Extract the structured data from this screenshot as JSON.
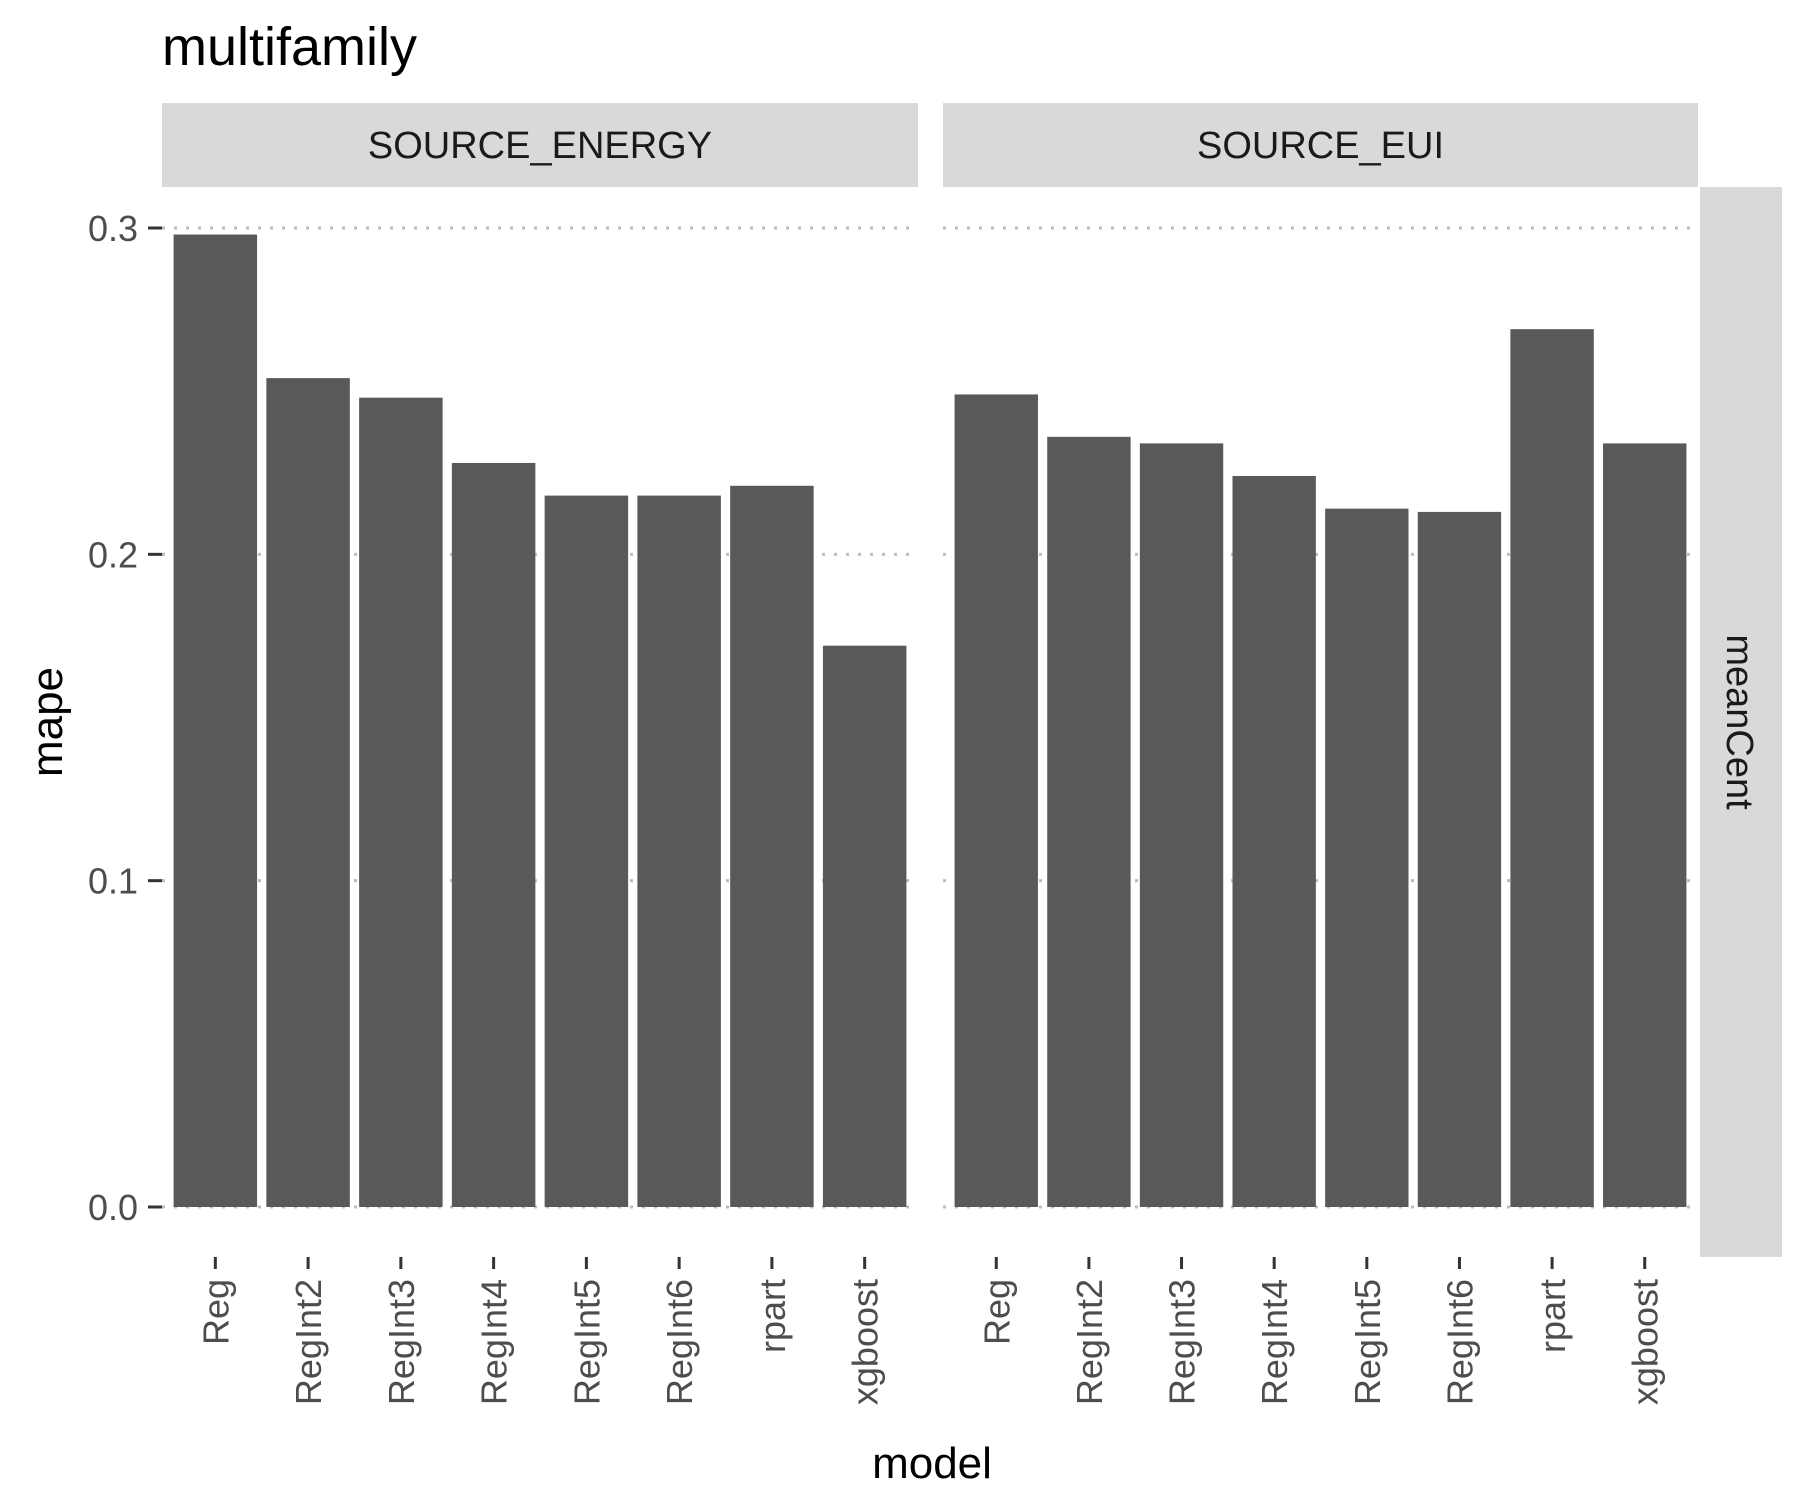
{
  "chart_data": {
    "type": "bar",
    "title": "multifamily",
    "xlabel": "model",
    "ylabel": "mape",
    "ylim": [
      0,
      0.3
    ],
    "yticks": [
      "0.0",
      "0.1",
      "0.2",
      "0.3"
    ],
    "grid": "dotted horizontal",
    "row_strip": "meanCent",
    "categories": [
      "Reg",
      "RegInt2",
      "RegInt3",
      "RegInt4",
      "RegInt5",
      "RegInt6",
      "rpart",
      "xgboost"
    ],
    "panels": [
      {
        "name": "SOURCE_ENERGY",
        "values": [
          0.298,
          0.254,
          0.248,
          0.228,
          0.218,
          0.218,
          0.221,
          0.172
        ]
      },
      {
        "name": "SOURCE_EUI",
        "values": [
          0.249,
          0.236,
          0.234,
          0.224,
          0.214,
          0.213,
          0.269,
          0.234
        ]
      }
    ],
    "colors": {
      "bar": "#595959",
      "strip": "#d9d9d9",
      "grid": "#bdbdbd"
    }
  }
}
